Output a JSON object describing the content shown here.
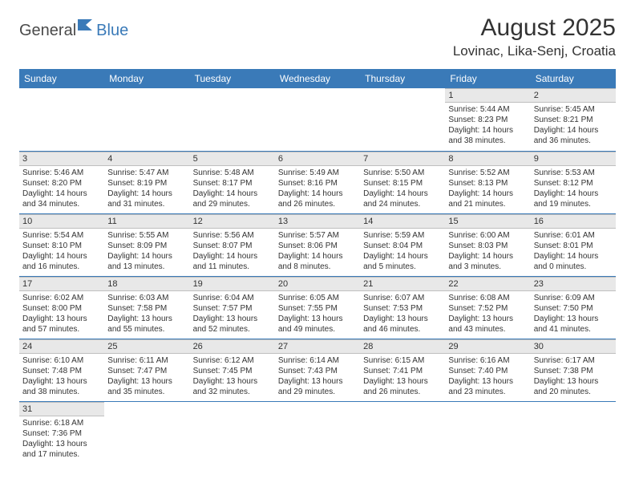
{
  "logo": {
    "part1": "General",
    "part2": "Blue"
  },
  "title": "August 2025",
  "location": "Lovinac, Lika-Senj, Croatia",
  "colors": {
    "header_bg": "#3a7ab8",
    "header_text": "#ffffff",
    "daynum_bg": "#e8e8e8",
    "border": "#3a7ab8",
    "text": "#333333"
  },
  "weekdays": [
    "Sunday",
    "Monday",
    "Tuesday",
    "Wednesday",
    "Thursday",
    "Friday",
    "Saturday"
  ],
  "weeks": [
    [
      null,
      null,
      null,
      null,
      null,
      {
        "n": "1",
        "sr": "5:44 AM",
        "ss": "8:23 PM",
        "dl": "14 hours and 38 minutes."
      },
      {
        "n": "2",
        "sr": "5:45 AM",
        "ss": "8:21 PM",
        "dl": "14 hours and 36 minutes."
      }
    ],
    [
      {
        "n": "3",
        "sr": "5:46 AM",
        "ss": "8:20 PM",
        "dl": "14 hours and 34 minutes."
      },
      {
        "n": "4",
        "sr": "5:47 AM",
        "ss": "8:19 PM",
        "dl": "14 hours and 31 minutes."
      },
      {
        "n": "5",
        "sr": "5:48 AM",
        "ss": "8:17 PM",
        "dl": "14 hours and 29 minutes."
      },
      {
        "n": "6",
        "sr": "5:49 AM",
        "ss": "8:16 PM",
        "dl": "14 hours and 26 minutes."
      },
      {
        "n": "7",
        "sr": "5:50 AM",
        "ss": "8:15 PM",
        "dl": "14 hours and 24 minutes."
      },
      {
        "n": "8",
        "sr": "5:52 AM",
        "ss": "8:13 PM",
        "dl": "14 hours and 21 minutes."
      },
      {
        "n": "9",
        "sr": "5:53 AM",
        "ss": "8:12 PM",
        "dl": "14 hours and 19 minutes."
      }
    ],
    [
      {
        "n": "10",
        "sr": "5:54 AM",
        "ss": "8:10 PM",
        "dl": "14 hours and 16 minutes."
      },
      {
        "n": "11",
        "sr": "5:55 AM",
        "ss": "8:09 PM",
        "dl": "14 hours and 13 minutes."
      },
      {
        "n": "12",
        "sr": "5:56 AM",
        "ss": "8:07 PM",
        "dl": "14 hours and 11 minutes."
      },
      {
        "n": "13",
        "sr": "5:57 AM",
        "ss": "8:06 PM",
        "dl": "14 hours and 8 minutes."
      },
      {
        "n": "14",
        "sr": "5:59 AM",
        "ss": "8:04 PM",
        "dl": "14 hours and 5 minutes."
      },
      {
        "n": "15",
        "sr": "6:00 AM",
        "ss": "8:03 PM",
        "dl": "14 hours and 3 minutes."
      },
      {
        "n": "16",
        "sr": "6:01 AM",
        "ss": "8:01 PM",
        "dl": "14 hours and 0 minutes."
      }
    ],
    [
      {
        "n": "17",
        "sr": "6:02 AM",
        "ss": "8:00 PM",
        "dl": "13 hours and 57 minutes."
      },
      {
        "n": "18",
        "sr": "6:03 AM",
        "ss": "7:58 PM",
        "dl": "13 hours and 55 minutes."
      },
      {
        "n": "19",
        "sr": "6:04 AM",
        "ss": "7:57 PM",
        "dl": "13 hours and 52 minutes."
      },
      {
        "n": "20",
        "sr": "6:05 AM",
        "ss": "7:55 PM",
        "dl": "13 hours and 49 minutes."
      },
      {
        "n": "21",
        "sr": "6:07 AM",
        "ss": "7:53 PM",
        "dl": "13 hours and 46 minutes."
      },
      {
        "n": "22",
        "sr": "6:08 AM",
        "ss": "7:52 PM",
        "dl": "13 hours and 43 minutes."
      },
      {
        "n": "23",
        "sr": "6:09 AM",
        "ss": "7:50 PM",
        "dl": "13 hours and 41 minutes."
      }
    ],
    [
      {
        "n": "24",
        "sr": "6:10 AM",
        "ss": "7:48 PM",
        "dl": "13 hours and 38 minutes."
      },
      {
        "n": "25",
        "sr": "6:11 AM",
        "ss": "7:47 PM",
        "dl": "13 hours and 35 minutes."
      },
      {
        "n": "26",
        "sr": "6:12 AM",
        "ss": "7:45 PM",
        "dl": "13 hours and 32 minutes."
      },
      {
        "n": "27",
        "sr": "6:14 AM",
        "ss": "7:43 PM",
        "dl": "13 hours and 29 minutes."
      },
      {
        "n": "28",
        "sr": "6:15 AM",
        "ss": "7:41 PM",
        "dl": "13 hours and 26 minutes."
      },
      {
        "n": "29",
        "sr": "6:16 AM",
        "ss": "7:40 PM",
        "dl": "13 hours and 23 minutes."
      },
      {
        "n": "30",
        "sr": "6:17 AM",
        "ss": "7:38 PM",
        "dl": "13 hours and 20 minutes."
      }
    ],
    [
      {
        "n": "31",
        "sr": "6:18 AM",
        "ss": "7:36 PM",
        "dl": "13 hours and 17 minutes."
      },
      null,
      null,
      null,
      null,
      null,
      null
    ]
  ]
}
